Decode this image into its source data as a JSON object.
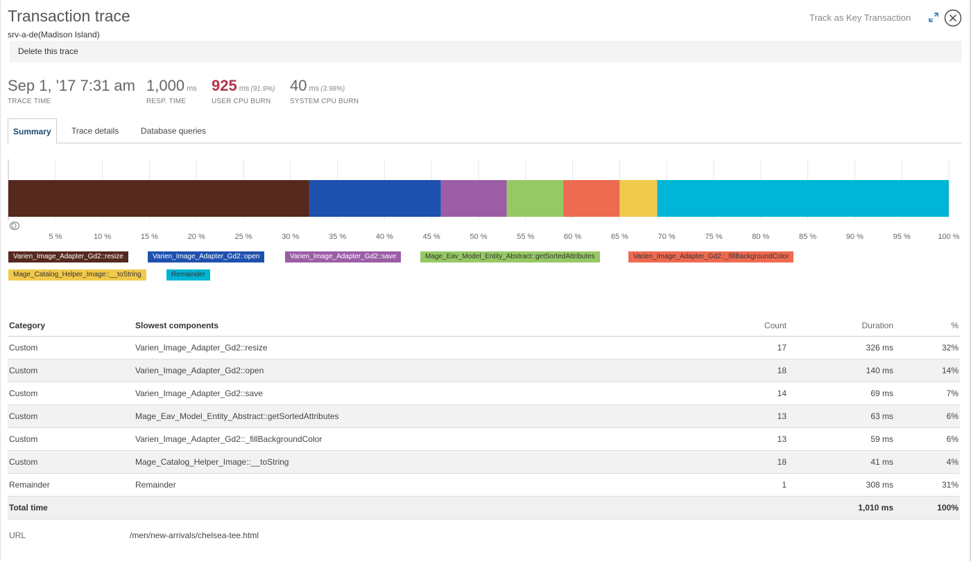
{
  "header": {
    "title": "Transaction trace",
    "subtitle": "srv-a-de(Madison Island)",
    "key_transaction": "Track as Key Transaction",
    "delete_label": "Delete this trace"
  },
  "metrics": [
    {
      "value": "Sep 1, '17 7:31 am",
      "unit": "",
      "pct": "",
      "label": "TRACE TIME"
    },
    {
      "value": "1,000",
      "unit": "ms",
      "pct": "",
      "label": "RESP. TIME"
    },
    {
      "value": "925",
      "unit": "ms",
      "pct": "(91.9%)",
      "label": "USER CPU BURN"
    },
    {
      "value": "40",
      "unit": "ms",
      "pct": "(3.98%)",
      "label": "SYSTEM CPU BURN"
    }
  ],
  "tabs": [
    "Summary",
    "Trace details",
    "Database queries"
  ],
  "chart_data": {
    "type": "bar",
    "orientation": "horizontal-stacked",
    "segments": [
      {
        "name": "Varien_Image_Adapter_Gd2::resize",
        "value": 32,
        "color": "#55291e"
      },
      {
        "name": "Varien_Image_Adapter_Gd2::open",
        "value": 14,
        "color": "#1e50ad"
      },
      {
        "name": "Varien_Image_Adapter_Gd2::save",
        "value": 7,
        "color": "#9b5da6"
      },
      {
        "name": "Mage_Eav_Model_Entity_Abstract::getSortedAttributes",
        "value": 6,
        "color": "#96c964"
      },
      {
        "name": "Varien_Image_Adapter_Gd2::_fillBackgroundColor",
        "value": 6,
        "color": "#ee6a51"
      },
      {
        "name": "Mage_Catalog_Helper_Image::__toString",
        "value": 4,
        "color": "#f1c94b"
      },
      {
        "name": "Remainder",
        "value": 31,
        "color": "#00b5d6"
      }
    ],
    "ticks": [
      "5 %",
      "10 %",
      "15 %",
      "20 %",
      "25 %",
      "30 %",
      "35 %",
      "40 %",
      "45 %",
      "50 %",
      "55 %",
      "60 %",
      "65 %",
      "70 %",
      "75 %",
      "80 %",
      "85 %",
      "90 %",
      "95 %",
      "100 %"
    ],
    "xlim": [
      0,
      100
    ],
    "grid": true,
    "legend": "bottom"
  },
  "legend_text_colors": [
    "#ffffff",
    "#ffffff",
    "#ffffff",
    "#333333",
    "#333333",
    "#333333",
    "#333333"
  ],
  "table": {
    "headers": [
      "Category",
      "Slowest components",
      "Count",
      "Duration",
      "%"
    ],
    "rows": [
      [
        "Custom",
        "Varien_Image_Adapter_Gd2::resize",
        "17",
        "326 ms",
        "32%"
      ],
      [
        "Custom",
        "Varien_Image_Adapter_Gd2::open",
        "18",
        "140 ms",
        "14%"
      ],
      [
        "Custom",
        "Varien_Image_Adapter_Gd2::save",
        "14",
        "69 ms",
        "7%"
      ],
      [
        "Custom",
        "Mage_Eav_Model_Entity_Abstract::getSortedAttributes",
        "13",
        "63 ms",
        "6%"
      ],
      [
        "Custom",
        "Varien_Image_Adapter_Gd2::_fillBackgroundColor",
        "13",
        "59 ms",
        "6%"
      ],
      [
        "Custom",
        "Mage_Catalog_Helper_Image::__toString",
        "18",
        "41 ms",
        "4%"
      ],
      [
        "Remainder",
        "Remainder",
        "1",
        "308 ms",
        "31%"
      ]
    ],
    "total": [
      "Total time",
      "",
      "",
      "1,010 ms",
      "100%"
    ]
  },
  "url": {
    "label": "URL",
    "value": "/men/new-arrivals/chelsea-tee.html"
  }
}
